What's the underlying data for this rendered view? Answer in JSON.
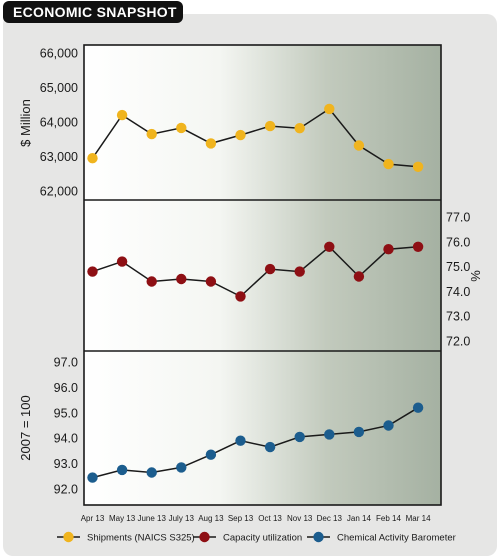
{
  "header": {
    "title": "ECONOMIC SNAPSHOT"
  },
  "chart_data": {
    "type": "line",
    "x_categories": [
      "Apr 13",
      "May 13",
      "June 13",
      "July 13",
      "Aug 13",
      "Sep 13",
      "Oct 13",
      "Nov 13",
      "Dec 13",
      "Jan 14",
      "Feb 14",
      "Mar 14"
    ],
    "panels": [
      {
        "ylabel": "$ Million",
        "ylim": [
          62000,
          66000
        ],
        "ticks": [
          "62,000",
          "63,000",
          "64,000",
          "65,000",
          "66,000"
        ],
        "tick_values": [
          62000,
          63000,
          64000,
          65000,
          66000
        ],
        "tick_side": "left",
        "series": {
          "name": "Shipments (NAICS S325)",
          "color": "#f0b41e",
          "values": [
            62950,
            64200,
            63650,
            63830,
            63380,
            63620,
            63880,
            63820,
            64380,
            63320,
            62780,
            62700
          ]
        }
      },
      {
        "ylabel": "%",
        "ylim": [
          71.5,
          77.5
        ],
        "ticks": [
          "72.0",
          "73.0",
          "74.0",
          "75.0",
          "76.0",
          "77.0"
        ],
        "tick_values": [
          72,
          73,
          74,
          75,
          76,
          77
        ],
        "tick_side": "right",
        "series": {
          "name": "Capacity utilization",
          "color": "#8e0f14",
          "values": [
            74.8,
            75.2,
            74.4,
            74.5,
            74.4,
            73.8,
            74.9,
            74.8,
            75.8,
            74.6,
            75.7,
            75.8
          ]
        }
      },
      {
        "ylabel": "2007 = 100",
        "ylim": [
          91.7,
          97.3
        ],
        "ticks": [
          "92.0",
          "93.0",
          "94.0",
          "95.0",
          "96.0",
          "97.0"
        ],
        "tick_values": [
          92,
          93,
          94,
          95,
          96,
          97
        ],
        "tick_side": "left",
        "series": {
          "name": "Chemical Activity Barometer",
          "color": "#1c5d8e",
          "values": [
            92.45,
            92.75,
            92.65,
            92.85,
            93.35,
            93.9,
            93.65,
            94.05,
            94.15,
            94.25,
            94.5,
            95.2
          ]
        }
      }
    ],
    "legend_position": "bottom",
    "grid": false
  }
}
